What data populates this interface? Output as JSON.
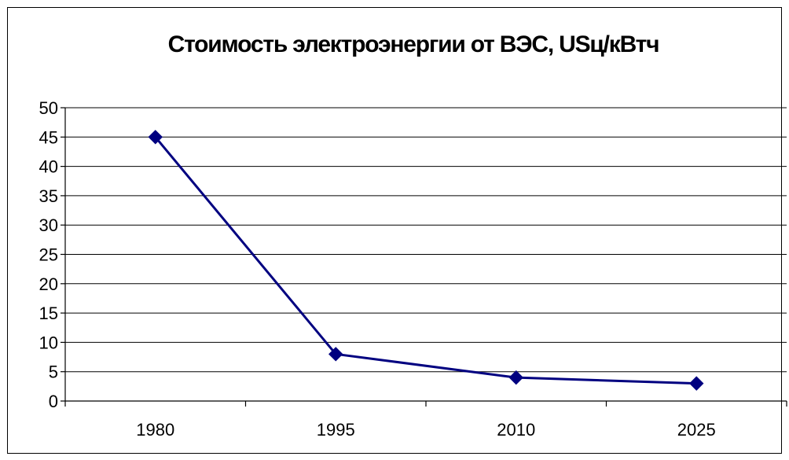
{
  "chart_data": {
    "type": "line",
    "title": "Стоимость электроэнергии от ВЭС, USц/кВтч",
    "categories": [
      "1980",
      "1995",
      "2010",
      "2025"
    ],
    "series": [
      {
        "values": [
          45,
          8,
          4,
          3
        ],
        "color": "#000080",
        "marker": "diamond"
      }
    ],
    "ylim": [
      0,
      50
    ],
    "yticks": [
      0,
      5,
      10,
      15,
      20,
      25,
      30,
      35,
      40,
      45,
      50
    ],
    "grid": "horizontal",
    "legend": "none"
  }
}
